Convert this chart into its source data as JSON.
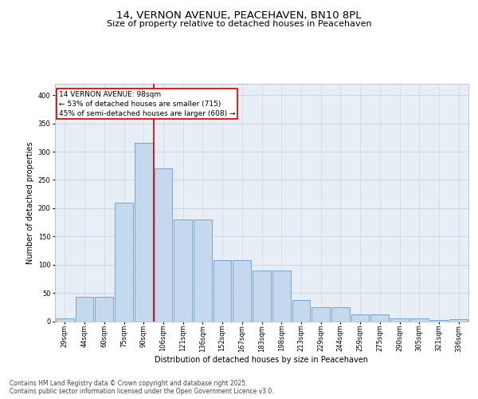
{
  "title_line1": "14, VERNON AVENUE, PEACEHAVEN, BN10 8PL",
  "title_line2": "Size of property relative to detached houses in Peacehaven",
  "xlabel": "Distribution of detached houses by size in Peacehaven",
  "ylabel": "Number of detached properties",
  "categories": [
    "29sqm",
    "44sqm",
    "60sqm",
    "75sqm",
    "90sqm",
    "106sqm",
    "121sqm",
    "136sqm",
    "152sqm",
    "167sqm",
    "183sqm",
    "198sqm",
    "213sqm",
    "229sqm",
    "244sqm",
    "259sqm",
    "275sqm",
    "290sqm",
    "305sqm",
    "321sqm",
    "336sqm"
  ],
  "values": [
    5,
    43,
    43,
    210,
    315,
    270,
    180,
    180,
    108,
    108,
    90,
    90,
    38,
    25,
    25,
    12,
    12,
    5,
    5,
    2,
    3
  ],
  "bar_color": "#c5d9ee",
  "bar_edge_color": "#6699cc",
  "grid_color": "#d0d8e8",
  "background_color": "#e8eef6",
  "annotation_box_text": "14 VERNON AVENUE: 98sqm\n← 53% of detached houses are smaller (715)\n45% of semi-detached houses are larger (608) →",
  "annotation_box_color": "#cc0000",
  "vline_x_index": 4,
  "vline_color": "#cc0000",
  "ylim": [
    0,
    420
  ],
  "yticks": [
    0,
    50,
    100,
    150,
    200,
    250,
    300,
    350,
    400
  ],
  "footnote": "Contains HM Land Registry data © Crown copyright and database right 2025.\nContains public sector information licensed under the Open Government Licence v3.0.",
  "title_fontsize": 9.5,
  "subtitle_fontsize": 8,
  "label_fontsize": 7,
  "tick_fontsize": 6,
  "annotation_fontsize": 6.5,
  "footnote_fontsize": 5.5
}
